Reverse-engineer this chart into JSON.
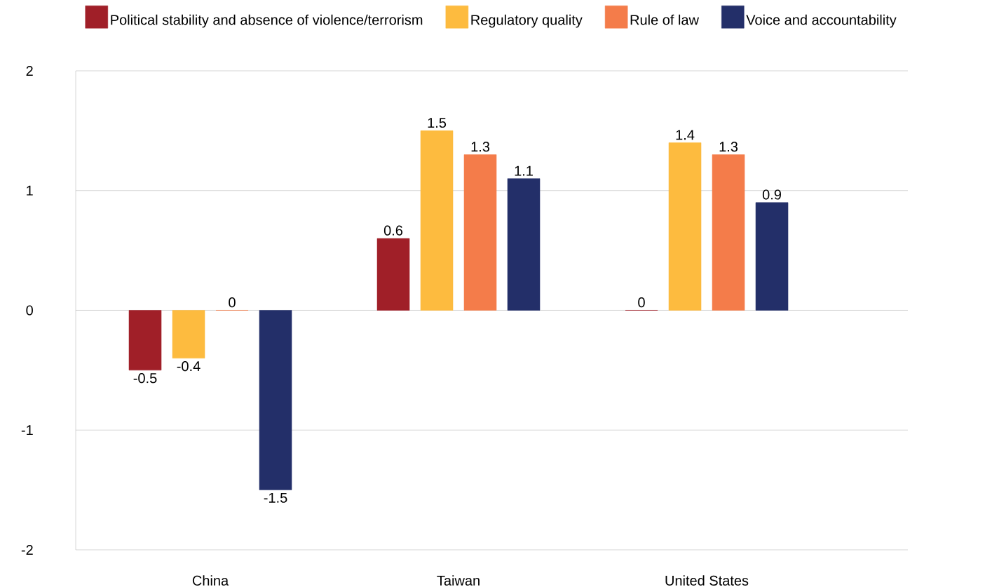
{
  "chart_data": {
    "type": "bar",
    "categories": [
      "China",
      "Taiwan",
      "United States"
    ],
    "series": [
      {
        "name": "Political stability and absence of violence/terrorism",
        "color": "#a01f28",
        "values": [
          -0.5,
          0.6,
          0
        ]
      },
      {
        "name": "Regulatory quality",
        "color": "#fdbb3f",
        "values": [
          -0.4,
          1.5,
          1.4
        ]
      },
      {
        "name": "Rule of law",
        "color": "#f47c4a",
        "values": [
          0,
          1.3,
          1.3
        ]
      },
      {
        "name": "Voice and accountability",
        "color": "#232f69",
        "values": [
          -1.5,
          1.1,
          0.9
        ]
      }
    ],
    "ylim": [
      -2,
      2
    ],
    "yticks": [
      -2,
      -1,
      0,
      1,
      2
    ],
    "grid": "y",
    "legend": "top",
    "data_labels": true
  }
}
